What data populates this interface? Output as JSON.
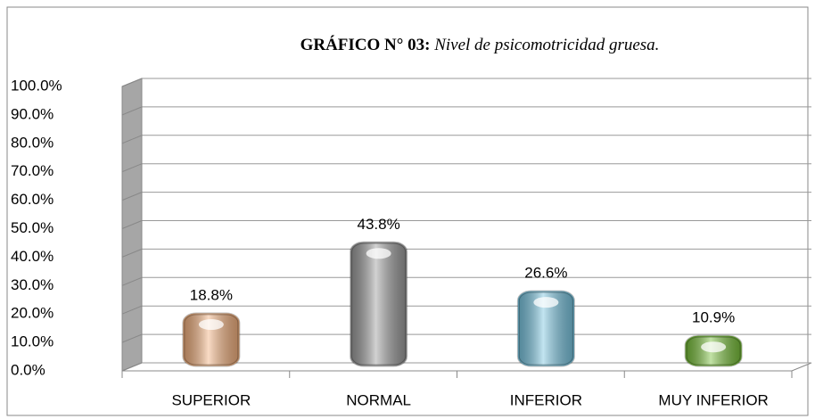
{
  "chart_data": {
    "type": "bar",
    "title_prefix": "GRÁFICO N° 03:",
    "title": "Nivel de psicomotricidad gruesa.",
    "categories": [
      "SUPERIOR",
      "NORMAL",
      "INFERIOR",
      "MUY INFERIOR"
    ],
    "values": [
      18.8,
      43.8,
      26.6,
      10.9
    ],
    "value_labels": [
      "18.8%",
      "43.8%",
      "26.6%",
      "10.9%"
    ],
    "colors": [
      "#f2b07e",
      "#9b9b9b",
      "#78c4df",
      "#78bf3a"
    ],
    "ylim": [
      0,
      100
    ],
    "yticks": [
      {
        "value": 0,
        "label": "0.0%"
      },
      {
        "value": 10,
        "label": "10.0%"
      },
      {
        "value": 20,
        "label": "20.0%"
      },
      {
        "value": 30,
        "label": "30.0%"
      },
      {
        "value": 40,
        "label": "40.0%"
      },
      {
        "value": 50,
        "label": "50.0%"
      },
      {
        "value": 60,
        "label": "60.0%"
      },
      {
        "value": 70,
        "label": "70.0%"
      },
      {
        "value": 80,
        "label": "80.0%"
      },
      {
        "value": 90,
        "label": "90.0%"
      },
      {
        "value": 100,
        "label": "100.0%"
      }
    ],
    "grid": true
  }
}
